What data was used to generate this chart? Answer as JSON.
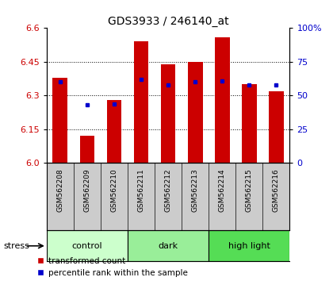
{
  "title": "GDS3933 / 246140_at",
  "samples": [
    "GSM562208",
    "GSM562209",
    "GSM562210",
    "GSM562211",
    "GSM562212",
    "GSM562213",
    "GSM562214",
    "GSM562215",
    "GSM562216"
  ],
  "transformed_counts": [
    6.38,
    6.12,
    6.28,
    6.54,
    6.44,
    6.45,
    6.56,
    6.35,
    6.32
  ],
  "percentile_ranks": [
    60,
    43,
    44,
    62,
    58,
    60,
    61,
    58,
    58
  ],
  "ylim_left": [
    6.0,
    6.6
  ],
  "ylim_right": [
    0,
    100
  ],
  "yticks_left": [
    6.0,
    6.15,
    6.3,
    6.45,
    6.6
  ],
  "yticks_right": [
    0,
    25,
    50,
    75,
    100
  ],
  "bar_color": "#cc0000",
  "dot_color": "#0000cc",
  "groups": [
    {
      "label": "control",
      "indices": [
        0,
        1,
        2
      ],
      "color": "#ccffcc"
    },
    {
      "label": "dark",
      "indices": [
        3,
        4,
        5
      ],
      "color": "#99ee99"
    },
    {
      "label": "high light",
      "indices": [
        6,
        7,
        8
      ],
      "color": "#55dd55"
    }
  ],
  "stress_label": "stress",
  "legend_bar_label": "transformed count",
  "legend_dot_label": "percentile rank within the sample",
  "title_color": "#000000",
  "left_axis_color": "#cc0000",
  "right_axis_color": "#0000cc",
  "label_area_color": "#cccccc",
  "bar_width": 0.55
}
